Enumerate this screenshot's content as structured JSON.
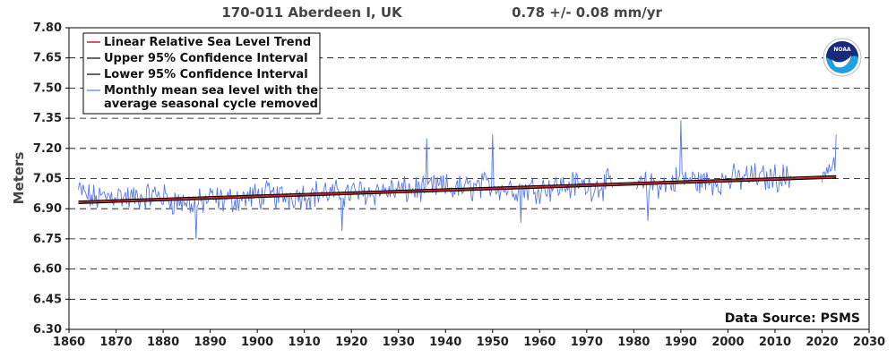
{
  "chart_data": {
    "type": "line",
    "title_station": "170-011 Aberdeen I, UK",
    "title_trend": "0.78 +/-  0.08 mm/yr",
    "ylabel": "Meters",
    "xlabel": "",
    "xlim": [
      1860,
      2030
    ],
    "ylim": [
      6.3,
      7.8
    ],
    "x_ticks": [
      1860,
      1870,
      1880,
      1890,
      1900,
      1910,
      1920,
      1930,
      1940,
      1950,
      1960,
      1970,
      1980,
      1990,
      2000,
      2010,
      2020,
      2030
    ],
    "y_ticks": [
      6.3,
      6.45,
      6.6,
      6.75,
      6.9,
      7.05,
      7.2,
      7.35,
      7.5,
      7.65,
      7.8
    ],
    "x_tick_labels": [
      "1860",
      "1870",
      "1880",
      "1890",
      "1900",
      "1910",
      "1920",
      "1930",
      "1940",
      "1950",
      "1960",
      "1970",
      "1980",
      "1990",
      "2000",
      "2010",
      "2020",
      "2030"
    ],
    "y_tick_labels": [
      "6.30",
      "6.45",
      "6.60",
      "6.75",
      "6.90",
      "7.05",
      "7.20",
      "7.35",
      "7.50",
      "7.65",
      "7.80"
    ],
    "grid": "horizontal-dashed",
    "legend_position": "top-left",
    "source": "Data Source: PSMS",
    "logo_text": "NOAA",
    "series": [
      {
        "name": "Linear Relative Sea Level Trend",
        "color": "#cc2020",
        "points": [
          [
            1862,
            6.932
          ],
          [
            2023,
            7.058
          ]
        ]
      },
      {
        "name": "Upper 95% Confidence Interval",
        "color": "#000000",
        "points": [
          [
            1862,
            6.938
          ],
          [
            2023,
            7.064
          ]
        ]
      },
      {
        "name": "Lower 95% Confidence Interval",
        "color": "#000000",
        "points": [
          [
            1862,
            6.926
          ],
          [
            2023,
            7.052
          ]
        ]
      },
      {
        "name_lines": [
          "Monthly mean sea level with the",
          "average seasonal cycle removed"
        ],
        "color": "#5577ee",
        "x_start": 1862,
        "x_end": 2023,
        "step_years": 0.25,
        "gaps": [
          [
            1975.5,
            1980.5
          ],
          [
            2013.5,
            2020.0
          ]
        ],
        "points": [
          [
            1862,
            6.99
          ],
          [
            1865,
            6.95
          ],
          [
            1868,
            6.96
          ],
          [
            1870,
            6.97
          ],
          [
            1873,
            6.95
          ],
          [
            1876,
            6.96
          ],
          [
            1879,
            6.97
          ],
          [
            1882,
            6.94
          ],
          [
            1885,
            6.93
          ],
          [
            1887,
            6.92
          ],
          [
            1890,
            6.95
          ],
          [
            1893,
            6.94
          ],
          [
            1896,
            6.95
          ],
          [
            1899,
            6.96
          ],
          [
            1902,
            6.97
          ],
          [
            1905,
            6.96
          ],
          [
            1908,
            6.97
          ],
          [
            1911,
            6.97
          ],
          [
            1914,
            6.98
          ],
          [
            1917,
            6.97
          ],
          [
            1920,
            6.98
          ],
          [
            1923,
            6.98
          ],
          [
            1926,
            6.99
          ],
          [
            1929,
            6.99
          ],
          [
            1932,
            6.99
          ],
          [
            1935,
            7.0
          ],
          [
            1938,
            7.01
          ],
          [
            1941,
            7.0
          ],
          [
            1944,
            7.0
          ],
          [
            1947,
            7.01
          ],
          [
            1950,
            7.02
          ],
          [
            1953,
            7.0
          ],
          [
            1956,
            7.0
          ],
          [
            1959,
            7.0
          ],
          [
            1962,
            7.01
          ],
          [
            1965,
            7.01
          ],
          [
            1968,
            7.02
          ],
          [
            1971,
            7.01
          ],
          [
            1974,
            7.02
          ],
          [
            1981,
            7.01
          ],
          [
            1984,
            7.02
          ],
          [
            1987,
            7.02
          ],
          [
            1990,
            7.05
          ],
          [
            1993,
            7.04
          ],
          [
            1996,
            7.03
          ],
          [
            1999,
            7.04
          ],
          [
            2002,
            7.05
          ],
          [
            2005,
            7.06
          ],
          [
            2008,
            7.05
          ],
          [
            2011,
            7.06
          ],
          [
            2013,
            7.05
          ],
          [
            2020,
            7.08
          ],
          [
            2023,
            7.12
          ]
        ],
        "max": [
          [
            1936,
            7.25
          ],
          [
            1950,
            7.27
          ],
          [
            1990,
            7.34
          ],
          [
            2023,
            7.27
          ]
        ],
        "min": [
          [
            1887,
            6.75
          ],
          [
            1918,
            6.79
          ],
          [
            1956,
            6.83
          ],
          [
            1983,
            6.84
          ]
        ]
      }
    ]
  }
}
